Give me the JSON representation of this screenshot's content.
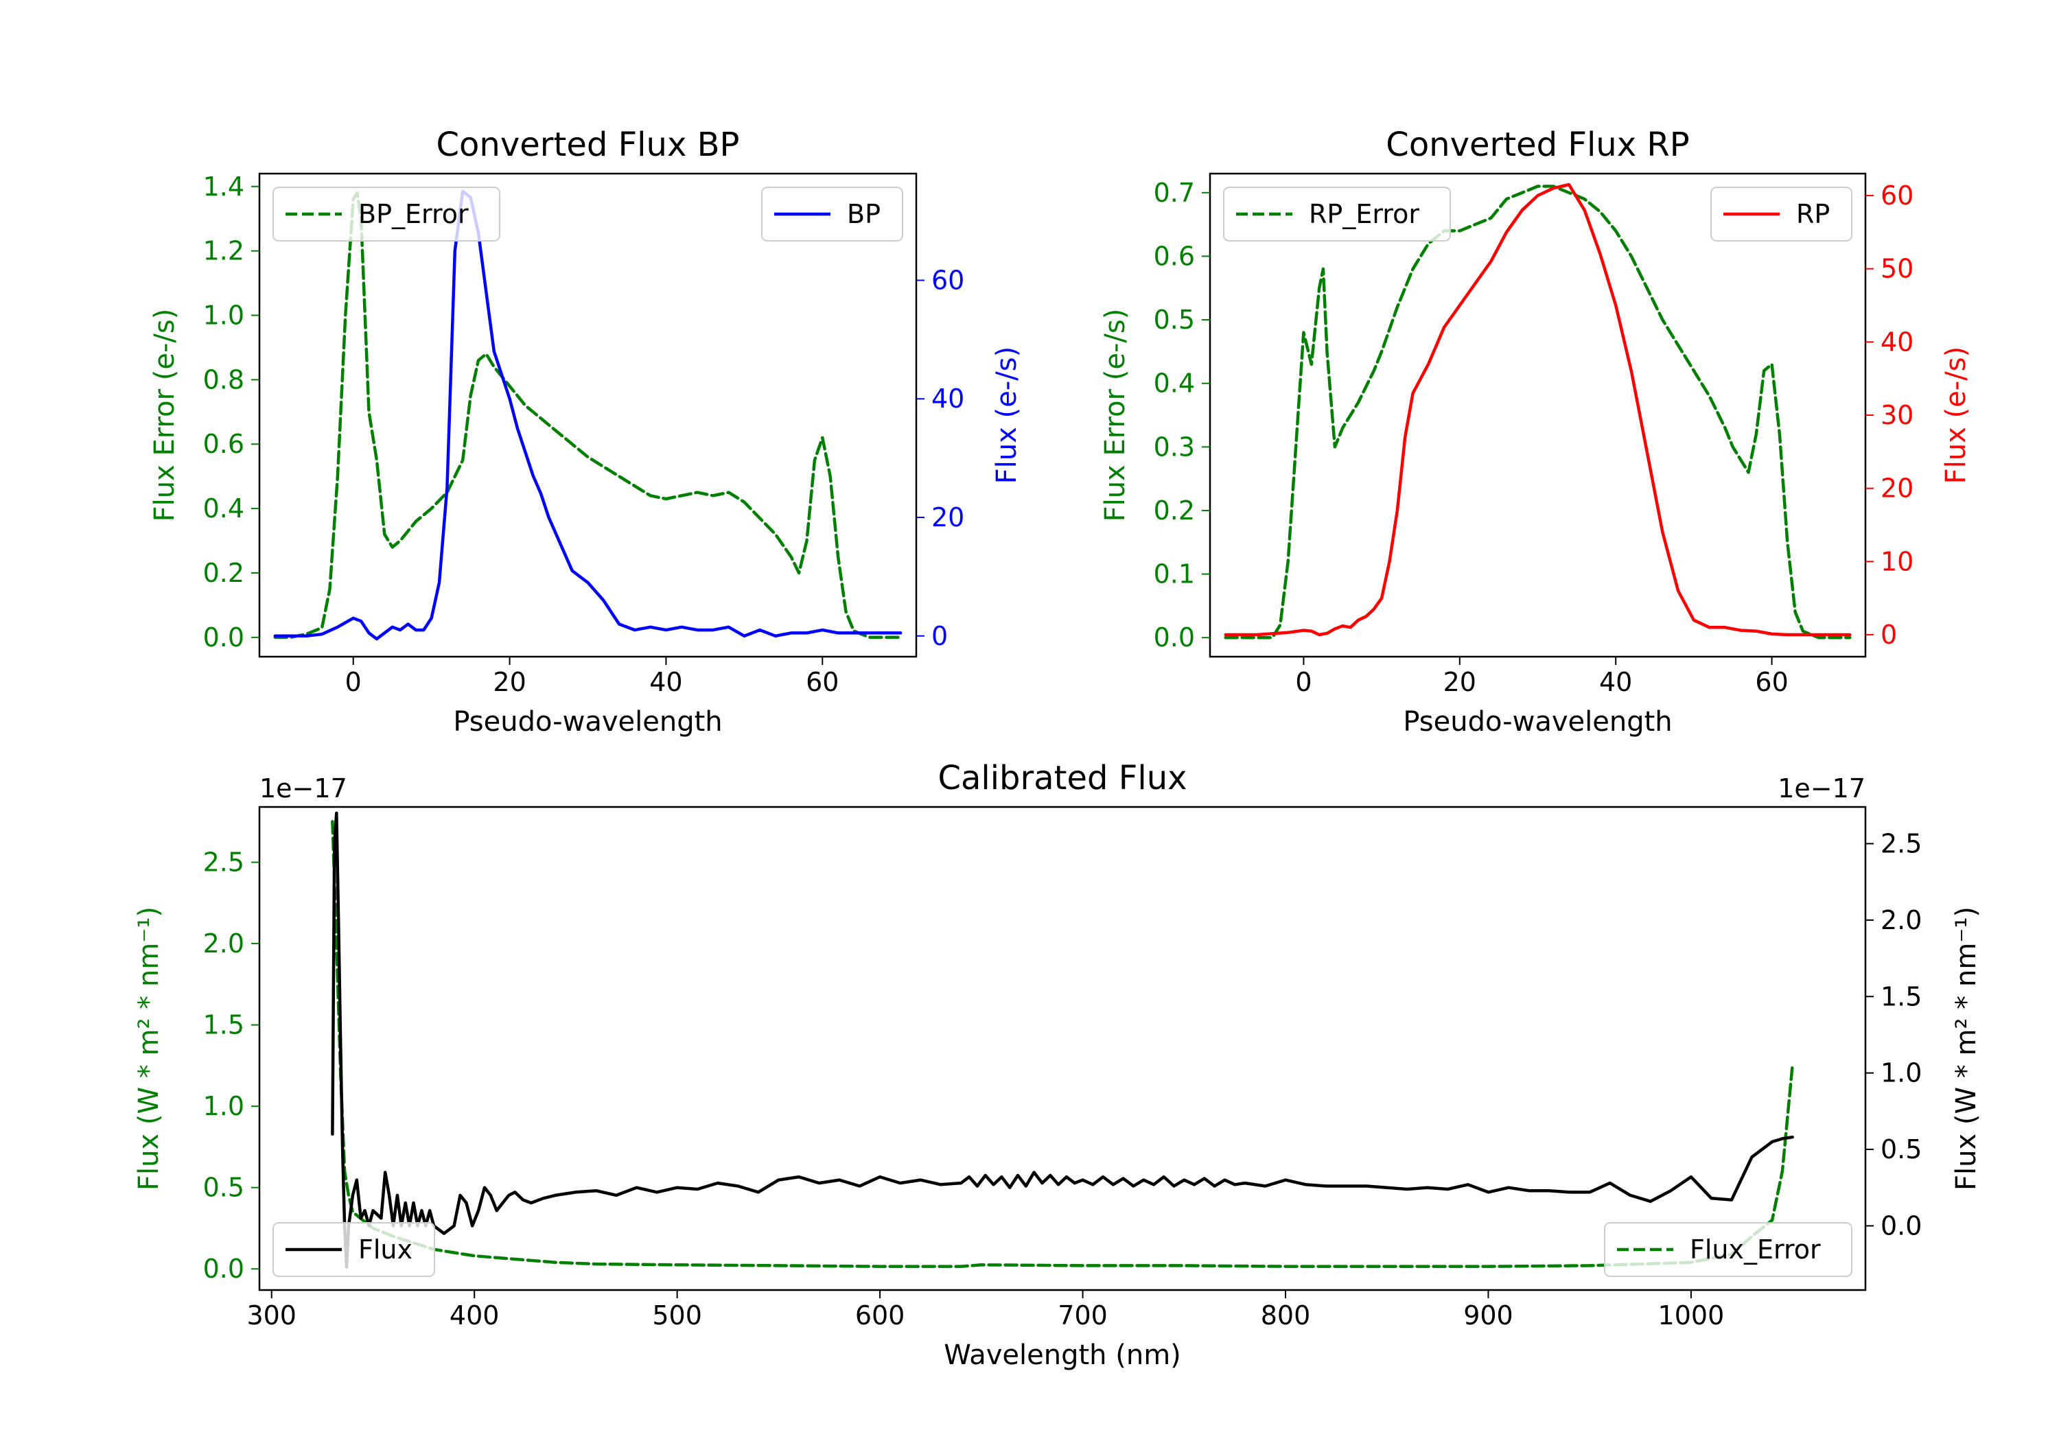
{
  "chart_data": [
    {
      "id": "bp",
      "type": "line",
      "title": "Converted Flux BP",
      "xlabel": "Pseudo-wavelength",
      "xlim": [
        -12,
        72
      ],
      "xticks": [
        0,
        20,
        40,
        60
      ],
      "left_axis": {
        "label": "Flux Error (e-/s)",
        "color": "#008000",
        "ylim": [
          -0.06,
          1.44
        ],
        "ticks": [
          0.0,
          0.2,
          0.4,
          0.6,
          0.8,
          1.0,
          1.2,
          1.4
        ],
        "tick_labels": [
          "0.0",
          "0.2",
          "0.4",
          "0.6",
          "0.8",
          "1.0",
          "1.2",
          "1.4"
        ]
      },
      "right_axis": {
        "label": "Flux (e-/s)",
        "color": "#0000ff",
        "ylim": [
          -3.5,
          78
        ],
        "ticks": [
          0,
          20,
          40,
          60
        ],
        "tick_labels": [
          "0",
          "20",
          "40",
          "60"
        ]
      },
      "series": [
        {
          "name": "BP_Error",
          "axis": "left",
          "color": "#008000",
          "dash": "dashed",
          "x": [
            -10,
            -8,
            -6,
            -4,
            -3,
            -2,
            -1,
            0,
            0.5,
            1,
            2,
            3,
            4,
            5,
            6,
            7,
            8,
            10,
            12,
            14,
            15,
            16,
            17,
            18,
            20,
            22,
            24,
            26,
            28,
            30,
            32,
            34,
            36,
            38,
            40,
            42,
            44,
            46,
            48,
            50,
            52,
            54,
            56,
            57,
            58,
            59,
            60,
            61,
            62,
            63,
            64,
            66,
            68,
            70
          ],
          "values": [
            0,
            0,
            0.01,
            0.03,
            0.15,
            0.5,
            1.0,
            1.36,
            1.38,
            1.3,
            0.7,
            0.55,
            0.32,
            0.28,
            0.3,
            0.33,
            0.36,
            0.4,
            0.45,
            0.55,
            0.75,
            0.86,
            0.88,
            0.84,
            0.78,
            0.72,
            0.68,
            0.64,
            0.6,
            0.56,
            0.53,
            0.5,
            0.47,
            0.44,
            0.43,
            0.44,
            0.45,
            0.44,
            0.45,
            0.42,
            0.37,
            0.32,
            0.25,
            0.2,
            0.3,
            0.55,
            0.62,
            0.5,
            0.25,
            0.08,
            0.02,
            0,
            0,
            0
          ]
        },
        {
          "name": "BP",
          "axis": "right",
          "color": "#0000ff",
          "dash": "solid",
          "x": [
            -10,
            -6,
            -4,
            -2,
            0,
            1,
            2,
            3,
            4,
            5,
            6,
            7,
            8,
            9,
            10,
            11,
            12,
            13,
            14,
            15,
            16,
            17,
            18,
            19,
            20,
            21,
            22,
            23,
            24,
            25,
            26,
            27,
            28,
            29,
            30,
            32,
            34,
            36,
            38,
            40,
            42,
            44,
            46,
            48,
            50,
            52,
            54,
            56,
            58,
            60,
            62,
            64,
            66,
            68,
            70
          ],
          "values": [
            0,
            0,
            0.3,
            1.5,
            3,
            2.5,
            0.5,
            -0.5,
            0.5,
            1.5,
            1.0,
            2.0,
            1.0,
            1.0,
            3.0,
            9.0,
            25.0,
            65.0,
            75.0,
            74.0,
            68.0,
            58.0,
            48.0,
            44.0,
            40.0,
            35.0,
            31.0,
            27.0,
            24.0,
            20.0,
            17.0,
            14.0,
            11.0,
            10.0,
            9.0,
            6.0,
            2.0,
            1.0,
            1.5,
            1.0,
            1.5,
            1.0,
            1.0,
            1.5,
            0.0,
            1.0,
            0.0,
            0.5,
            0.5,
            1.0,
            0.5,
            0.5,
            0.5,
            0.5,
            0.5
          ]
        }
      ],
      "legends": [
        {
          "series": "BP_Error",
          "label": "BP_Error",
          "loc": "upper left"
        },
        {
          "series": "BP",
          "label": "BP",
          "loc": "upper right"
        }
      ]
    },
    {
      "id": "rp",
      "type": "line",
      "title": "Converted Flux RP",
      "xlabel": "Pseudo-wavelength",
      "xlim": [
        -12,
        72
      ],
      "xticks": [
        0,
        20,
        40,
        60
      ],
      "left_axis": {
        "label": "Flux Error (e-/s)",
        "color": "#008000",
        "ylim": [
          -0.03,
          0.73
        ],
        "ticks": [
          0.0,
          0.1,
          0.2,
          0.3,
          0.4,
          0.5,
          0.6,
          0.7
        ],
        "tick_labels": [
          "0.0",
          "0.1",
          "0.2",
          "0.3",
          "0.4",
          "0.5",
          "0.6",
          "0.7"
        ]
      },
      "right_axis": {
        "label": "Flux (e-/s)",
        "color": "#ff0000",
        "ylim": [
          -3,
          63
        ],
        "ticks": [
          0,
          10,
          20,
          30,
          40,
          50,
          60
        ],
        "tick_labels": [
          "0",
          "10",
          "20",
          "30",
          "40",
          "50",
          "60"
        ]
      },
      "series": [
        {
          "name": "RP_Error",
          "axis": "left",
          "color": "#008000",
          "dash": "dashed",
          "x": [
            -10,
            -6,
            -4,
            -3,
            -2,
            -1,
            0,
            1,
            2,
            2.5,
            3,
            4,
            5,
            7,
            9,
            10,
            12,
            14,
            16,
            18,
            20,
            22,
            24,
            26,
            28,
            30,
            32,
            34,
            36,
            38,
            40,
            42,
            44,
            46,
            48,
            50,
            52,
            54,
            55,
            56,
            57,
            58,
            59,
            60,
            61,
            62,
            63,
            64,
            66,
            68,
            70
          ],
          "values": [
            0,
            0,
            0,
            0.02,
            0.12,
            0.3,
            0.48,
            0.43,
            0.55,
            0.58,
            0.45,
            0.3,
            0.33,
            0.37,
            0.42,
            0.45,
            0.52,
            0.58,
            0.62,
            0.64,
            0.64,
            0.65,
            0.66,
            0.69,
            0.7,
            0.71,
            0.71,
            0.7,
            0.69,
            0.67,
            0.64,
            0.6,
            0.55,
            0.5,
            0.46,
            0.42,
            0.38,
            0.33,
            0.3,
            0.28,
            0.26,
            0.32,
            0.42,
            0.43,
            0.32,
            0.15,
            0.04,
            0.01,
            0,
            0,
            0
          ]
        },
        {
          "name": "RP",
          "axis": "right",
          "color": "#ff0000",
          "dash": "solid",
          "x": [
            -10,
            -6,
            -2,
            0,
            1,
            2,
            3,
            4,
            5,
            6,
            7,
            8,
            9,
            10,
            11,
            12,
            13,
            14,
            16,
            18,
            20,
            22,
            24,
            26,
            28,
            30,
            32,
            34,
            36,
            38,
            40,
            42,
            44,
            46,
            48,
            50,
            52,
            54,
            56,
            58,
            60,
            62,
            64,
            66,
            68,
            70
          ],
          "values": [
            0,
            0,
            0.3,
            0.6,
            0.5,
            0.0,
            0.2,
            0.8,
            1.2,
            1.0,
            2.0,
            2.5,
            3.5,
            5.0,
            10.0,
            17.0,
            27.0,
            33.0,
            37.0,
            42.0,
            45.0,
            48.0,
            51.0,
            55.0,
            58.0,
            60.0,
            61.0,
            61.5,
            58.0,
            52.0,
            45.0,
            36.0,
            25.0,
            14.0,
            6.0,
            2.0,
            1.0,
            1.0,
            0.6,
            0.5,
            0.1,
            0.0,
            0.0,
            0.0,
            0.0,
            0.0
          ]
        }
      ],
      "legends": [
        {
          "series": "RP_Error",
          "label": "RP_Error",
          "loc": "upper left"
        },
        {
          "series": "RP",
          "label": "RP",
          "loc": "upper right"
        }
      ]
    },
    {
      "id": "cal",
      "type": "line",
      "title": "Calibrated Flux",
      "xlabel": "Wavelength (nm)",
      "xlim": [
        294,
        1086
      ],
      "xticks": [
        300,
        400,
        500,
        600,
        700,
        800,
        900,
        1000
      ],
      "left_axis": {
        "label": "Flux (W * m² * nm⁻¹)",
        "color": "#008000",
        "ylim": [
          -0.13,
          2.84
        ],
        "ticks": [
          0.0,
          0.5,
          1.0,
          1.5,
          2.0,
          2.5
        ],
        "tick_labels": [
          "0.0",
          "0.5",
          "1.0",
          "1.5",
          "2.0",
          "2.5"
        ],
        "offset": "1e−17"
      },
      "right_axis": {
        "label": "Flux (W * m² * nm⁻¹)",
        "color": "#000000",
        "ylim": [
          -0.42,
          2.74
        ],
        "ticks": [
          0.0,
          0.5,
          1.0,
          1.5,
          2.0,
          2.5
        ],
        "tick_labels": [
          "0.0",
          "0.5",
          "1.0",
          "1.5",
          "2.0",
          "2.5"
        ],
        "offset": "1e−17"
      },
      "series": [
        {
          "name": "Flux_Error",
          "axis": "left",
          "color": "#008000",
          "dash": "dashed",
          "x": [
            330,
            332,
            334,
            336,
            338,
            340,
            345,
            350,
            360,
            370,
            380,
            390,
            400,
            420,
            440,
            460,
            500,
            550,
            600,
            640,
            650,
            700,
            750,
            800,
            850,
            900,
            950,
            1000,
            1020,
            1030,
            1040,
            1045,
            1050
          ],
          "values": [
            2.75,
            2.0,
            1.2,
            0.6,
            0.45,
            0.35,
            0.3,
            0.25,
            0.2,
            0.16,
            0.12,
            0.1,
            0.08,
            0.06,
            0.04,
            0.03,
            0.025,
            0.02,
            0.015,
            0.015,
            0.025,
            0.02,
            0.02,
            0.015,
            0.015,
            0.015,
            0.02,
            0.04,
            0.09,
            0.2,
            0.3,
            0.6,
            1.25
          ]
        },
        {
          "name": "Flux",
          "axis": "right",
          "color": "#000000",
          "dash": "solid",
          "x": [
            330,
            331,
            332,
            333,
            334,
            335,
            336,
            337,
            338,
            339,
            340,
            342,
            344,
            346,
            348,
            350,
            354,
            356,
            358,
            360,
            362,
            364,
            366,
            368,
            370,
            372,
            374,
            376,
            378,
            380,
            385,
            390,
            393,
            396,
            399,
            402,
            405,
            408,
            411,
            414,
            417,
            420,
            424,
            428,
            434,
            440,
            450,
            460,
            470,
            480,
            490,
            500,
            510,
            520,
            530,
            540,
            550,
            560,
            570,
            580,
            590,
            600,
            610,
            620,
            630,
            640,
            644,
            648,
            652,
            656,
            660,
            664,
            668,
            672,
            676,
            680,
            684,
            688,
            692,
            696,
            700,
            705,
            710,
            715,
            720,
            725,
            730,
            735,
            740,
            745,
            750,
            755,
            760,
            765,
            770,
            775,
            780,
            790,
            800,
            810,
            820,
            830,
            840,
            850,
            860,
            870,
            880,
            890,
            900,
            910,
            920,
            930,
            940,
            950,
            960,
            970,
            980,
            990,
            1000,
            1010,
            1020,
            1030,
            1040,
            1045,
            1050
          ],
          "values": [
            0.6,
            2.5,
            2.7,
            2.0,
            1.2,
            0.5,
            0.0,
            -0.27,
            0.0,
            0.1,
            0.2,
            0.3,
            0.05,
            0.1,
            0.0,
            0.1,
            0.05,
            0.35,
            0.2,
            0.0,
            0.2,
            0.0,
            0.15,
            0.0,
            0.15,
            0.0,
            0.1,
            0.0,
            0.1,
            0.0,
            -0.05,
            0.0,
            0.2,
            0.15,
            0.0,
            0.1,
            0.25,
            0.2,
            0.1,
            0.15,
            0.2,
            0.22,
            0.17,
            0.15,
            0.18,
            0.2,
            0.22,
            0.23,
            0.2,
            0.25,
            0.22,
            0.25,
            0.24,
            0.28,
            0.26,
            0.22,
            0.3,
            0.32,
            0.28,
            0.3,
            0.26,
            0.32,
            0.28,
            0.3,
            0.27,
            0.28,
            0.32,
            0.26,
            0.33,
            0.27,
            0.32,
            0.25,
            0.33,
            0.26,
            0.35,
            0.28,
            0.33,
            0.27,
            0.32,
            0.28,
            0.3,
            0.27,
            0.32,
            0.27,
            0.31,
            0.26,
            0.3,
            0.27,
            0.32,
            0.26,
            0.3,
            0.27,
            0.31,
            0.26,
            0.3,
            0.27,
            0.28,
            0.26,
            0.3,
            0.27,
            0.26,
            0.26,
            0.26,
            0.25,
            0.24,
            0.25,
            0.24,
            0.27,
            0.22,
            0.25,
            0.23,
            0.23,
            0.22,
            0.22,
            0.28,
            0.2,
            0.16,
            0.23,
            0.32,
            0.18,
            0.17,
            0.45,
            0.55,
            0.57,
            0.58
          ]
        }
      ],
      "legends": [
        {
          "series": "Flux",
          "label": "Flux",
          "loc": "lower left"
        },
        {
          "series": "Flux_Error",
          "label": "Flux_Error",
          "loc": "lower right"
        }
      ]
    }
  ]
}
